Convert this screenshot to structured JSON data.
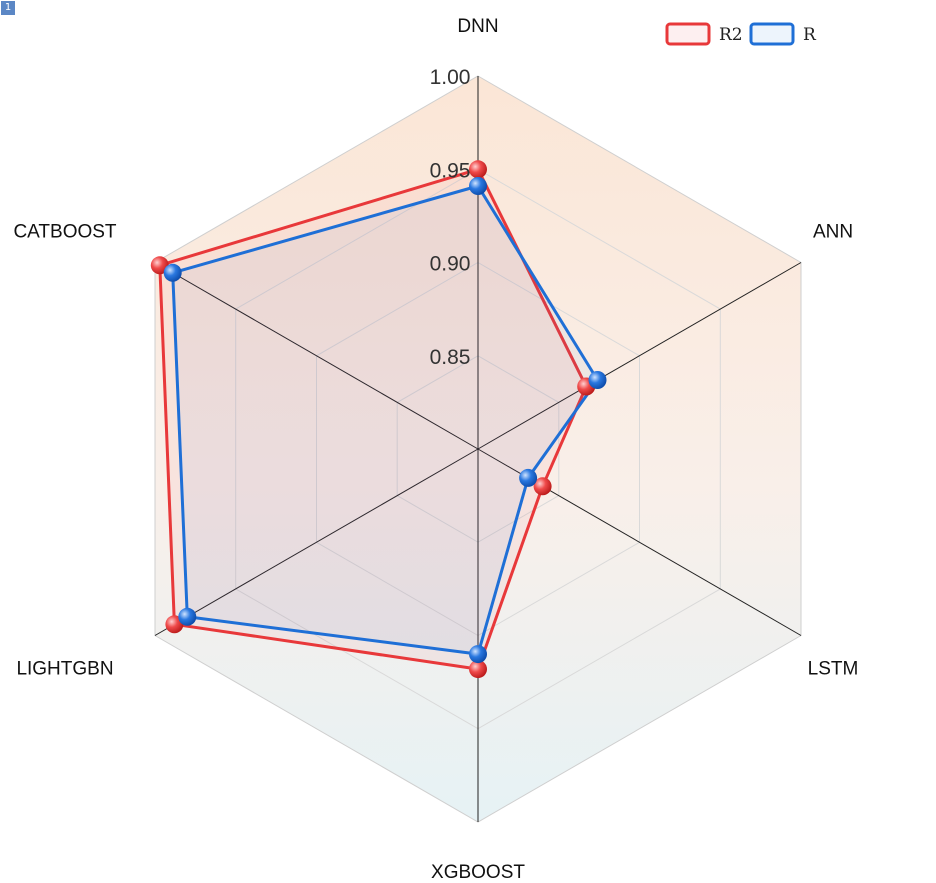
{
  "badge": "1",
  "chart_data": {
    "type": "radar",
    "categories": [
      "DNN",
      "ANN",
      "LSTM",
      "XGBOOST",
      "LIGHTGBN",
      "CATBOOST"
    ],
    "range": [
      0.8,
      1.0
    ],
    "ticks": [
      0.85,
      0.9,
      0.95,
      1.0
    ],
    "tick_labels": [
      "0.85",
      "0.90",
      "0.95",
      "1.00"
    ],
    "legend_position": "top-right",
    "series": [
      {
        "name": "R2",
        "color": "#e8383a",
        "values": [
          0.95,
          0.867,
          0.84,
          0.918,
          0.988,
          0.997
        ]
      },
      {
        "name": "R",
        "color": "#1f6fd6",
        "values": [
          0.941,
          0.874,
          0.831,
          0.91,
          0.98,
          0.989
        ]
      }
    ]
  }
}
